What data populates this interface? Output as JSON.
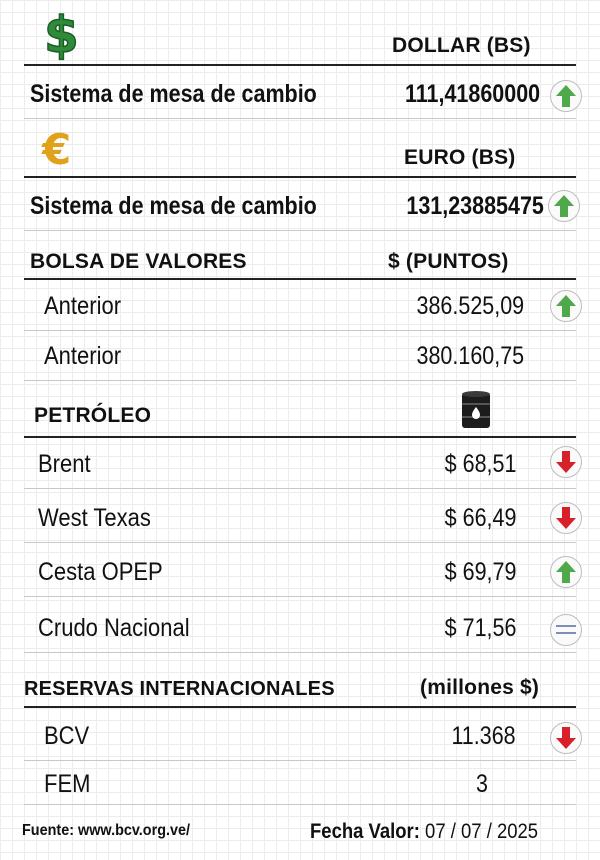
{
  "dollar": {
    "header": "DOLLAR (BS)",
    "label": "Sistema de mesa de cambio",
    "value": "111,41860000",
    "trend_icon": "arrow-up-icon",
    "icon": "dollar-sign-icon",
    "symbol": "$",
    "color": "#2e8b3a"
  },
  "euro": {
    "header": "EURO (BS)",
    "label": "Sistema de mesa de cambio",
    "value": "131,23885475",
    "trend_icon": "arrow-up-icon",
    "icon": "euro-sign-icon",
    "symbol": "€",
    "color": "#e0a11b"
  },
  "bolsa": {
    "header": "BOLSA DE VALORES",
    "unit": "$ (PUNTOS)",
    "rows": [
      {
        "label": "Anterior",
        "value": "386.525,09",
        "trend_icon": "arrow-up-icon"
      },
      {
        "label": "Anterior",
        "value": "380.160,75"
      }
    ]
  },
  "petroleo": {
    "header": "PETRÓLEO",
    "icon": "oil-barrel-icon",
    "rows": [
      {
        "label": "Brent",
        "value": "$ 68,51",
        "trend_icon": "arrow-down-icon"
      },
      {
        "label": "West Texas",
        "value": "$ 66,49",
        "trend_icon": "arrow-down-icon"
      },
      {
        "label": "Cesta OPEP",
        "value": "$ 69,79",
        "trend_icon": "arrow-up-icon"
      },
      {
        "label": "Crudo Nacional",
        "value": "$ 71,56",
        "trend_icon": "equal-icon"
      }
    ]
  },
  "reservas": {
    "header": "RESERVAS INTERNACIONALES",
    "unit": "(millones $)",
    "rows": [
      {
        "label": "BCV",
        "value": "11.368",
        "trend_icon": "arrow-down-icon"
      },
      {
        "label": "FEM",
        "value": "3"
      }
    ]
  },
  "footer": {
    "source": "Fuente: www.bcv.org.ve/",
    "date_label": "Fecha Valor:",
    "date_value": "07 / 07 / 2025"
  },
  "colors": {
    "up": "#4fa84a",
    "down": "#d8202a",
    "equal": "#7b8fb8"
  }
}
